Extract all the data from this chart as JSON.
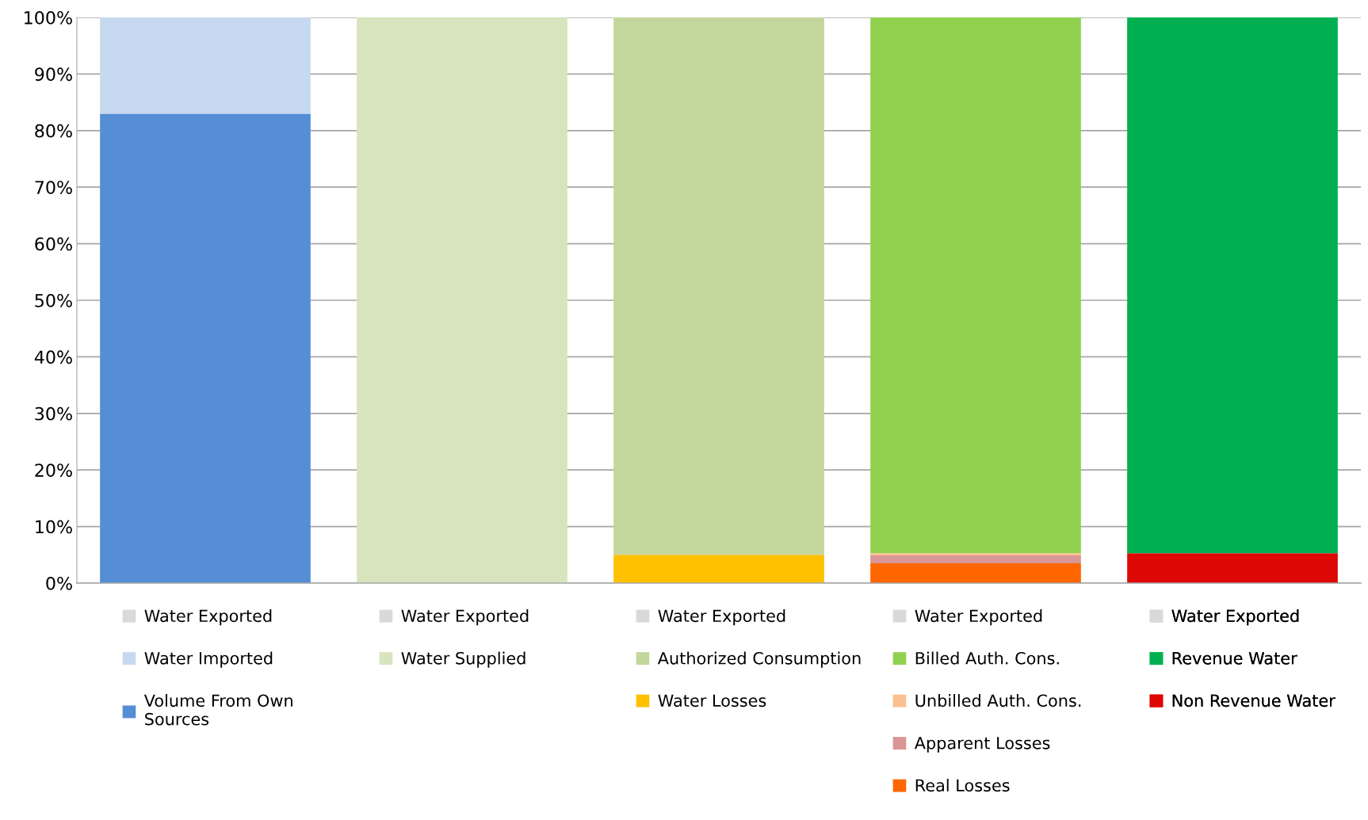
{
  "chart_data": {
    "type": "bar",
    "stacked": true,
    "categories": [
      null,
      null,
      null,
      null,
      null
    ],
    "ylim": [
      0,
      100
    ],
    "yticks": [
      {
        "value": 0,
        "label": "0%"
      },
      {
        "value": 10,
        "label": "10%"
      },
      {
        "value": 20,
        "label": "20%"
      },
      {
        "value": 30,
        "label": "30%"
      },
      {
        "value": 40,
        "label": "40%"
      },
      {
        "value": 50,
        "label": "50%"
      },
      {
        "value": 60,
        "label": "60%"
      },
      {
        "value": 70,
        "label": "70%"
      },
      {
        "value": 80,
        "label": "80%"
      },
      {
        "value": 90,
        "label": "90%"
      },
      {
        "value": 100,
        "label": "100%"
      }
    ],
    "tick_labels": "y",
    "grid": "y",
    "legend": "bottom",
    "series": [
      {
        "name": "Volume From Own\nSources",
        "color": "#558ed5",
        "values": [
          83,
          null,
          null,
          null,
          null
        ]
      },
      {
        "name": "Water Imported",
        "color": "#c6d9f1",
        "values": [
          17,
          null,
          null,
          null,
          null
        ]
      },
      {
        "name": "Water Exported",
        "color": "#d9d9d9",
        "values": [
          0,
          null,
          null,
          null,
          null
        ]
      },
      {
        "name": "Water Supplied",
        "color": "#d7e4bd",
        "values": [
          null,
          100,
          null,
          null,
          null
        ]
      },
      {
        "name": "Water Exported",
        "color": "#d9d9d9",
        "values": [
          null,
          0,
          null,
          null,
          null
        ]
      },
      {
        "name": "Water Losses",
        "color": "#ffc000",
        "values": [
          null,
          null,
          5,
          null,
          null
        ]
      },
      {
        "name": "Authorized Consumption",
        "color": "#c3d69b",
        "values": [
          null,
          null,
          95,
          null,
          null
        ]
      },
      {
        "name": "Water Exported",
        "color": "#d9d9d9",
        "values": [
          null,
          null,
          0,
          null,
          null
        ]
      },
      {
        "name": "Real Losses",
        "color": "#ff6600",
        "values": [
          null,
          null,
          null,
          3.5,
          null
        ]
      },
      {
        "name": "Apparent Losses",
        "color": "#d99694",
        "values": [
          null,
          null,
          null,
          1.4,
          null
        ]
      },
      {
        "name": "Unbilled Auth. Cons.",
        "color": "#fac090",
        "values": [
          null,
          null,
          null,
          0.4,
          null
        ]
      },
      {
        "name": "Billed Auth. Cons.",
        "color": "#92d050",
        "values": [
          null,
          null,
          null,
          94.7,
          null
        ]
      },
      {
        "name": "Water Exported",
        "color": "#d9d9d9",
        "values": [
          null,
          null,
          null,
          0,
          null
        ]
      },
      {
        "name": "Non Revenue Water",
        "color": "#dd0806",
        "values": [
          null,
          null,
          null,
          null,
          5.3
        ]
      },
      {
        "name": "Revenue Water",
        "color": "#00b050",
        "values": [
          null,
          null,
          null,
          null,
          94.7
        ]
      },
      {
        "name": "Water Exported",
        "color": "#d9d9d9",
        "values": [
          null,
          null,
          null,
          null,
          0
        ]
      }
    ]
  }
}
